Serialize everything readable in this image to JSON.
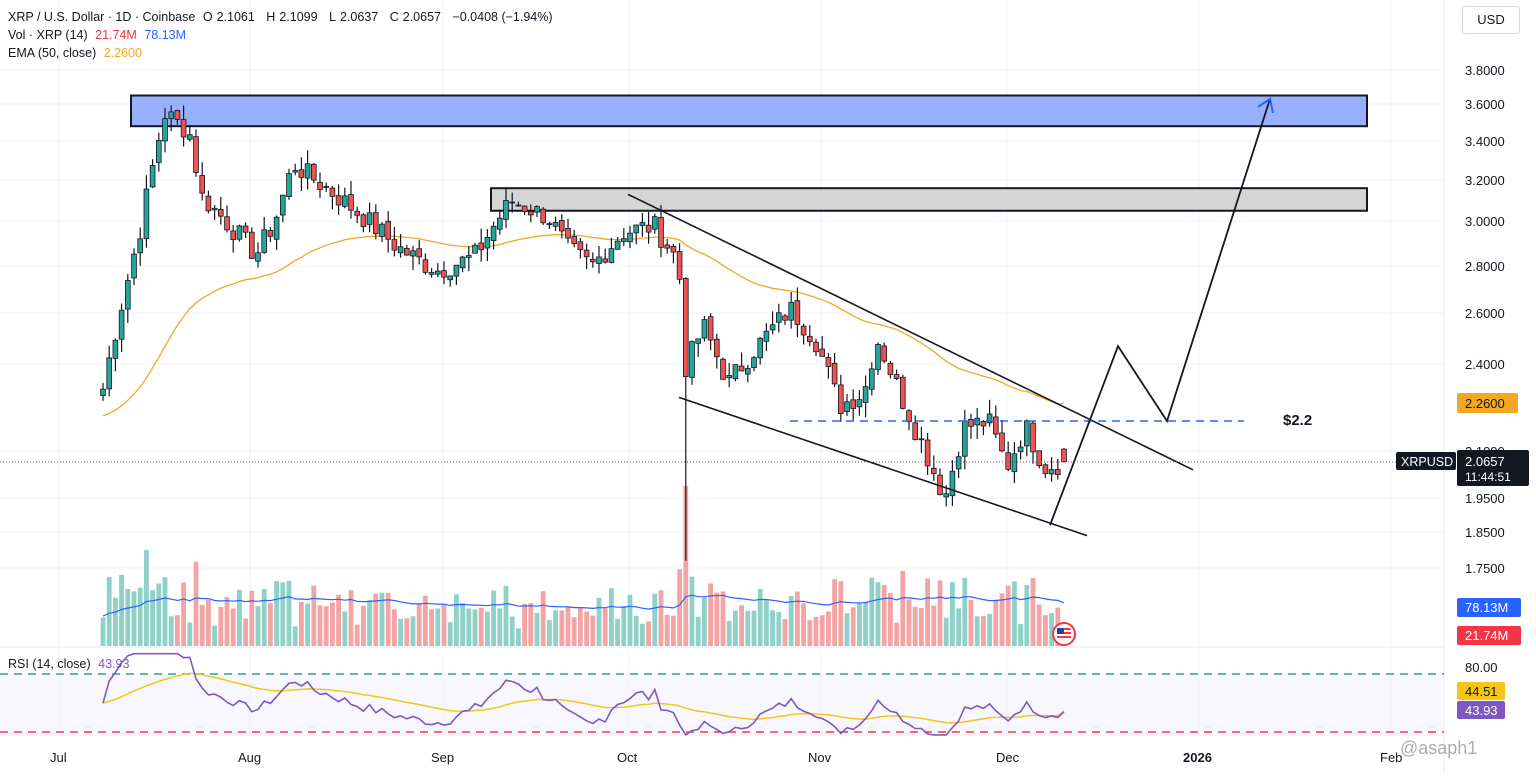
{
  "header": {
    "symbol": "XRP / U.S. Dollar · 1D · Coinbase",
    "open_label": "O",
    "open": "2.1061",
    "high_label": "H",
    "high": "2.1099",
    "low_label": "L",
    "low": "2.0637",
    "close_label": "C",
    "close": "2.0657",
    "change": "−0.0408 (−1.94%)",
    "vol_label": "Vol · XRP (14)",
    "vol_value": "21.74M",
    "vol_ma": "78.13M",
    "ema_label": "EMA (50, close)",
    "ema_value": "2.2600",
    "rsi_label": "RSI (14, close)",
    "rsi_value": "43.93",
    "rsi_ma_value": "44.51"
  },
  "currency_button": "USD",
  "price_axis": {
    "ticks": [
      "3.8000",
      "3.6000",
      "3.4000",
      "3.2000",
      "3.0000",
      "2.8000",
      "2.6000",
      "2.4000",
      "2.1000",
      "1.9500",
      "1.8500",
      "1.7500"
    ],
    "ema_badge": "2.2600",
    "symbol_badge": "XRPUSD",
    "price_badge": "2.0657",
    "countdown": "11:44:51",
    "vol_ma_badge": "78.13M",
    "vol_badge": "21.74M"
  },
  "rsi_axis": {
    "ticks": [
      "80.00"
    ],
    "ma_badge": "44.51",
    "rsi_badge": "43.93"
  },
  "time_axis": [
    "Jul",
    "Aug",
    "Sep",
    "Oct",
    "Nov",
    "Dec",
    "2026",
    "Feb"
  ],
  "annotations": {
    "support_label": "$2.2",
    "watermark": "@asaph1"
  },
  "colors": {
    "up": "#26a69a",
    "down": "#ef5350",
    "ema": "#f5a623",
    "vol_ma": "#2962ff",
    "rsi": "#7e57c2",
    "rsi_ma": "#f5c518",
    "zone_blue": "#7f9cff",
    "zone_gray": "#d0d0d0"
  },
  "chart_data": {
    "type": "candlestick",
    "symbol": "XRPUSD",
    "timeframe": "1D",
    "x_range": [
      "Jun 2025",
      "Feb 2026"
    ],
    "ylim": [
      1.75,
      3.8
    ],
    "last": {
      "open": 2.1061,
      "high": 2.1099,
      "low": 2.0637,
      "close": 2.0657
    },
    "ema50_last": 2.26,
    "volume_last": "21.74M",
    "volume_ma_last": "78.13M",
    "rsi_last": 43.93,
    "rsi_ma_last": 44.51,
    "rsi_bands": [
      30,
      70
    ],
    "anchors": [
      {
        "date": "Jun 26",
        "price": 2.12
      },
      {
        "date": "Jul 08",
        "price": 2.3
      },
      {
        "date": "Jul 14",
        "price": 2.95
      },
      {
        "date": "Jul 18",
        "price": 3.55
      },
      {
        "date": "Jul 22",
        "price": 3.45
      },
      {
        "date": "Jul 24",
        "price": 3.12
      },
      {
        "date": "Aug 02",
        "price": 2.85
      },
      {
        "date": "Aug 05",
        "price": 3.0
      },
      {
        "date": "Aug 08",
        "price": 3.28
      },
      {
        "date": "Aug 16",
        "price": 3.1
      },
      {
        "date": "Aug 25",
        "price": 2.88
      },
      {
        "date": "Aug 31",
        "price": 2.78
      },
      {
        "date": "Sep 06",
        "price": 2.84
      },
      {
        "date": "Sep 12",
        "price": 3.1
      },
      {
        "date": "Sep 18",
        "price": 3.02
      },
      {
        "date": "Sep 21",
        "price": 2.88
      },
      {
        "date": "Sep 25",
        "price": 2.8
      },
      {
        "date": "Sep 30",
        "price": 2.95
      },
      {
        "date": "Oct 05",
        "price": 2.98
      },
      {
        "date": "Oct 09",
        "price": 2.82
      },
      {
        "date": "Oct 10",
        "price": 2.38
      },
      {
        "date": "Oct 13",
        "price": 2.55
      },
      {
        "date": "Oct 17",
        "price": 2.33
      },
      {
        "date": "Oct 21",
        "price": 2.45
      },
      {
        "date": "Oct 27",
        "price": 2.62
      },
      {
        "date": "Oct 31",
        "price": 2.5
      },
      {
        "date": "Nov 04",
        "price": 2.25
      },
      {
        "date": "Nov 08",
        "price": 2.3
      },
      {
        "date": "Nov 10",
        "price": 2.5
      },
      {
        "date": "Nov 14",
        "price": 2.28
      },
      {
        "date": "Nov 21",
        "price": 1.95
      },
      {
        "date": "Nov 24",
        "price": 2.18
      },
      {
        "date": "Nov 28",
        "price": 2.2
      },
      {
        "date": "Dec 01",
        "price": 2.05
      },
      {
        "date": "Dec 04",
        "price": 2.18
      },
      {
        "date": "Dec 07",
        "price": 2.05
      },
      {
        "date": "Dec 11",
        "price": 2.0657
      }
    ],
    "zones": [
      {
        "from": 3.48,
        "to": 3.65,
        "color": "blue"
      },
      {
        "from": 3.05,
        "to": 3.16,
        "color": "gray"
      }
    ],
    "levels": [
      {
        "price": 2.2,
        "label": "$2.2",
        "style": "dashed"
      }
    ],
    "grid": true
  }
}
